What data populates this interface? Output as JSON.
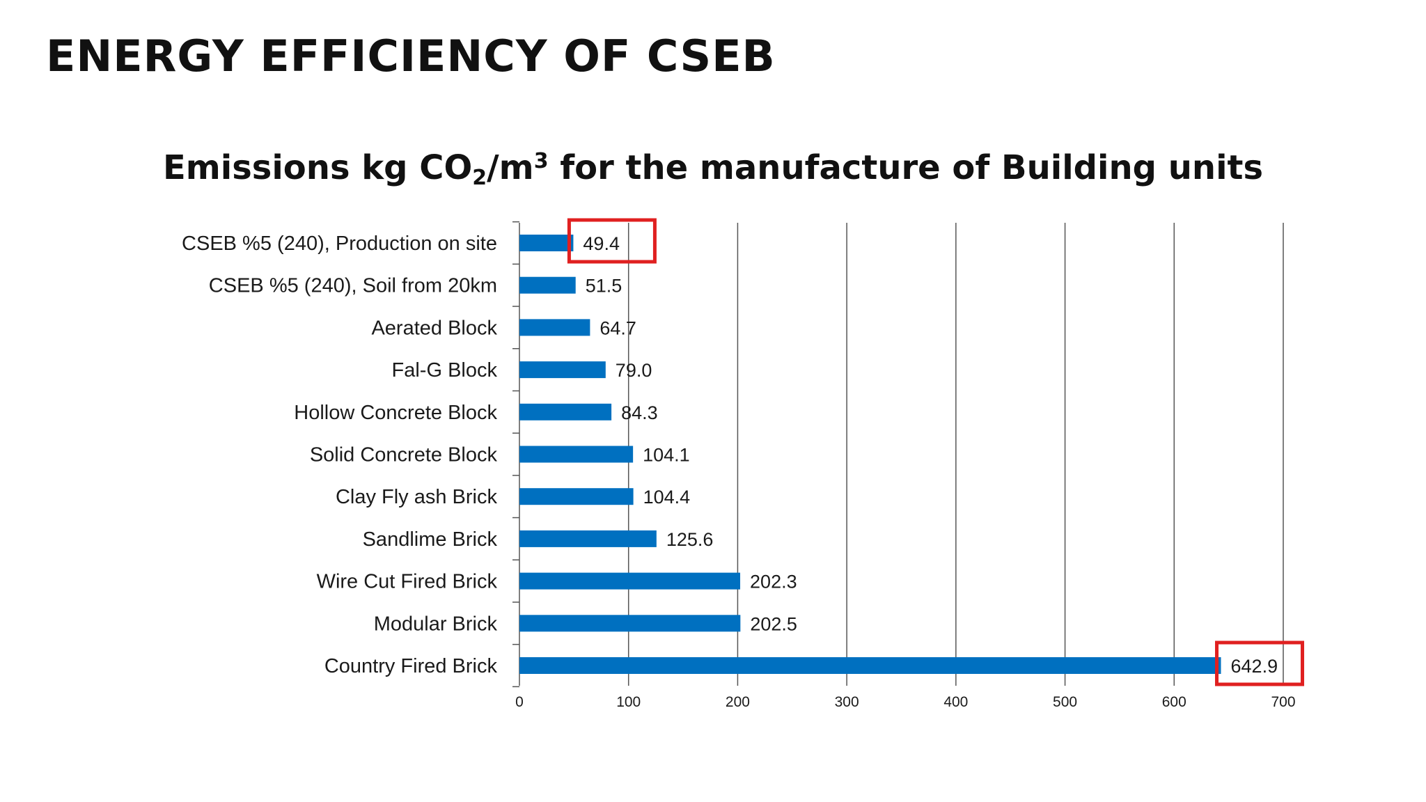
{
  "page": {
    "title": "ENERGY EFFICIENCY OF CSEB"
  },
  "chart_title": {
    "part1": "Emissions kg CO",
    "sub": "2",
    "part2": "/m",
    "sup": "3",
    "part3": " for the manufacture of Building units"
  },
  "colors": {
    "bar": "#0070C0",
    "highlight": "#E02020",
    "grid": "#555555"
  },
  "chart_data": {
    "type": "bar",
    "orientation": "horizontal",
    "title": "Emissions kg CO2/m3 for the manufacture of Building units",
    "categories": [
      "CSEB %5 (240), Production on site",
      "CSEB %5 (240), Soil from 20km",
      "Aerated Block",
      "Fal-G Block",
      "Hollow Concrete Block",
      "Solid Concrete Block",
      "Clay Fly ash Brick",
      "Sandlime Brick",
      "Wire Cut Fired Brick",
      "Modular Brick",
      "Country Fired Brick"
    ],
    "values": [
      49.4,
      51.5,
      64.7,
      79.0,
      84.3,
      104.1,
      104.4,
      125.6,
      202.3,
      202.5,
      642.9
    ],
    "value_labels": [
      "49.4",
      "51.5",
      "64.7",
      "79.0",
      "84.3",
      "104.1",
      "104.4",
      "125.6",
      "202.3",
      "202.5",
      "642.9"
    ],
    "xlim": [
      0,
      700
    ],
    "x_ticks": [
      "0",
      "100",
      "200",
      "300",
      "400",
      "500",
      "600",
      "700"
    ],
    "grid": true,
    "highlighted": [
      "CSEB %5 (240), Production on site",
      "Country Fired Brick"
    ]
  }
}
